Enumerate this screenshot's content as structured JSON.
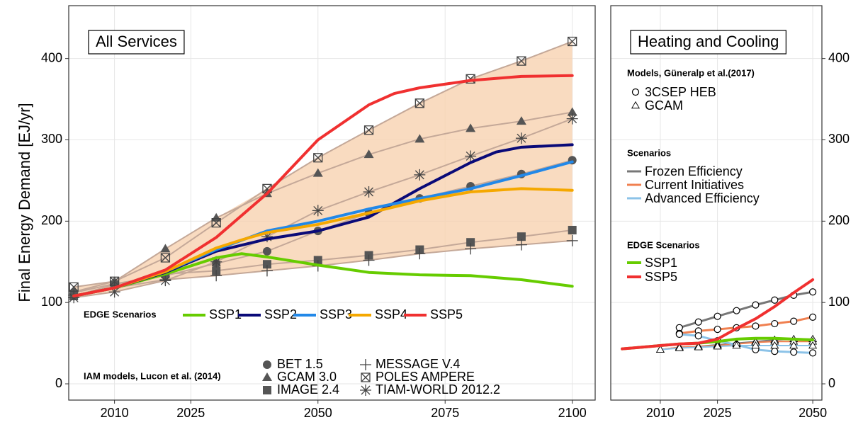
{
  "chart_data": [
    {
      "type": "line",
      "title": "All Services",
      "ylabel": "Final Energy Demand [EJ/yr]",
      "xlim": [
        2001,
        2104.5
      ],
      "ylim": [
        -20,
        465
      ],
      "xticks": [
        2010,
        2025,
        2050,
        2075,
        2100
      ],
      "yticks": [
        0,
        100,
        200,
        300,
        400
      ],
      "grid": true,
      "legend_title": "EDGE Scenarios",
      "series": [
        {
          "name": "SSP1",
          "color": "#66cc00",
          "x": [
            2002,
            2010,
            2020,
            2030,
            2035,
            2040,
            2050,
            2060,
            2070,
            2080,
            2090,
            2100
          ],
          "values": [
            108,
            118,
            135,
            155,
            160,
            156,
            146,
            137,
            134,
            133,
            128,
            120
          ]
        },
        {
          "name": "SSP2",
          "color": "#0a0a78",
          "x": [
            2002,
            2010,
            2020,
            2030,
            2040,
            2050,
            2060,
            2070,
            2080,
            2085,
            2090,
            2100
          ],
          "values": [
            108,
            118,
            137,
            163,
            178,
            188,
            205,
            240,
            272,
            285,
            291,
            294
          ]
        },
        {
          "name": "SSP3",
          "color": "#2288e8",
          "x": [
            2002,
            2010,
            2020,
            2030,
            2040,
            2050,
            2060,
            2070,
            2080,
            2090,
            2100
          ],
          "values": [
            108,
            118,
            138,
            165,
            188,
            200,
            215,
            228,
            240,
            256,
            273
          ]
        },
        {
          "name": "SSP4",
          "color": "#f5a800",
          "x": [
            2002,
            2010,
            2020,
            2030,
            2035,
            2040,
            2050,
            2060,
            2070,
            2080,
            2090,
            2100
          ],
          "values": [
            108,
            118,
            138,
            167,
            177,
            186,
            196,
            210,
            225,
            236,
            240,
            238
          ]
        },
        {
          "name": "SSP5",
          "color": "#f03030",
          "x": [
            2002,
            2010,
            2020,
            2030,
            2040,
            2050,
            2060,
            2065,
            2070,
            2080,
            2090,
            2100
          ],
          "values": [
            108,
            118,
            140,
            180,
            234,
            300,
            343,
            357,
            364,
            373,
            378,
            379
          ]
        }
      ],
      "models_title": "IAM models, Lucon et al. (2014)",
      "models": [
        {
          "name": "BET 1.5",
          "marker": "circle",
          "x": [
            2002,
            2010,
            2020,
            2030,
            2040,
            2050,
            2060,
            2070,
            2080,
            2090,
            2100
          ],
          "values": [
            112,
            123,
            133,
            148,
            163,
            188,
            210,
            228,
            243,
            258,
            275
          ]
        },
        {
          "name": "GCAM 3.0",
          "marker": "triangle",
          "x": [
            2002,
            2010,
            2020,
            2030,
            2040,
            2050,
            2060,
            2070,
            2080,
            2090,
            2100
          ],
          "values": [
            113,
            126,
            166,
            204,
            234,
            259,
            282,
            301,
            314,
            323,
            334
          ]
        },
        {
          "name": "IMAGE 2.4",
          "marker": "square",
          "x": [
            2002,
            2010,
            2020,
            2030,
            2040,
            2050,
            2060,
            2070,
            2080,
            2090,
            2100
          ],
          "values": [
            108,
            122,
            135,
            139,
            147,
            152,
            158,
            165,
            174,
            181,
            189
          ]
        },
        {
          "name": "MESSAGE V.4",
          "marker": "plus",
          "x": [
            2002,
            2010,
            2020,
            2030,
            2040,
            2050,
            2060,
            2070,
            2080,
            2090,
            2100
          ],
          "values": [
            109,
            118,
            128,
            133,
            139,
            145,
            152,
            160,
            166,
            171,
            176
          ]
        },
        {
          "name": "POLES AMPERE",
          "marker": "boxed-x",
          "x": [
            2002,
            2010,
            2020,
            2030,
            2040,
            2050,
            2060,
            2070,
            2080,
            2090,
            2100
          ],
          "values": [
            119,
            126,
            155,
            198,
            240,
            278,
            312,
            345,
            375,
            397,
            421
          ]
        },
        {
          "name": "TIAM-WORLD 2012.2",
          "marker": "asterisk",
          "x": [
            2002,
            2010,
            2020,
            2030,
            2040,
            2050,
            2060,
            2070,
            2080,
            2090,
            2100
          ],
          "values": [
            106,
            113,
            127,
            150,
            181,
            213,
            236,
            257,
            280,
            302,
            326
          ]
        }
      ]
    },
    {
      "type": "line",
      "title": "Heating and Cooling",
      "xlim": [
        1997,
        2052.4
      ],
      "ylim": [
        -20,
        465
      ],
      "xticks": [
        2010,
        2025,
        2050
      ],
      "yticks": [
        0,
        100,
        200,
        300,
        400
      ],
      "grid": true,
      "models_title": "Models, Güneralp et al.(2017)",
      "models": [
        {
          "name": "3CSEP HEB",
          "marker": "open-circle"
        },
        {
          "name": "GCAM",
          "marker": "open-triangle"
        }
      ],
      "scenarios_title": "Scenarios",
      "scenarios": [
        {
          "name": "Frozen Efficiency",
          "color": "#777777",
          "models": [
            {
              "x": [
                2015,
                2020,
                2025,
                2030,
                2035,
                2040,
                2045,
                2050
              ],
              "values": [
                69,
                76,
                83,
                90,
                97,
                103,
                109,
                113
              ]
            },
            {
              "x": [
                2010,
                2015,
                2020,
                2025,
                2030,
                2035,
                2040,
                2045,
                2050
              ],
              "values": [
                42,
                45,
                46,
                48,
                50,
                52,
                54,
                55,
                55
              ]
            }
          ]
        },
        {
          "name": "Current Initiatives",
          "color": "#f08050",
          "models": [
            {
              "x": [
                2015,
                2020,
                2025,
                2030,
                2035,
                2040,
                2045,
                2050
              ],
              "values": [
                62,
                65,
                67,
                69,
                71,
                74,
                77,
                82
              ]
            },
            {
              "x": [
                2010,
                2015,
                2020,
                2025,
                2030,
                2035,
                2040,
                2045,
                2050
              ],
              "values": [
                42,
                45,
                46,
                47,
                49,
                51,
                52,
                52,
                52
              ]
            }
          ]
        },
        {
          "name": "Advanced Efficiency",
          "color": "#8cc3e8",
          "models": [
            {
              "x": [
                2015,
                2020,
                2025,
                2030,
                2035,
                2040,
                2045,
                2050
              ],
              "values": [
                61,
                59,
                53,
                48,
                42,
                40,
                39,
                38
              ]
            },
            {
              "x": [
                2010,
                2015,
                2020,
                2025,
                2030,
                2035,
                2040,
                2045,
                2050
              ],
              "values": [
                42,
                44,
                45,
                46,
                47,
                47,
                47,
                47,
                47
              ]
            }
          ]
        }
      ],
      "legend_title": "EDGE Scenarios",
      "series": [
        {
          "name": "SSP1",
          "color": "#66cc00",
          "x": [
            2000,
            2005,
            2010,
            2015,
            2020,
            2025,
            2030,
            2035,
            2040,
            2045,
            2050
          ],
          "values": [
            43,
            45,
            47,
            49,
            50,
            52,
            55,
            56,
            56,
            55,
            54
          ]
        },
        {
          "name": "SSP5",
          "color": "#f03030",
          "x": [
            2000,
            2005,
            2010,
            2015,
            2020,
            2025,
            2030,
            2035,
            2040,
            2045,
            2050
          ],
          "values": [
            43,
            45,
            47,
            49,
            50,
            55,
            68,
            80,
            95,
            112,
            128
          ]
        }
      ]
    }
  ]
}
